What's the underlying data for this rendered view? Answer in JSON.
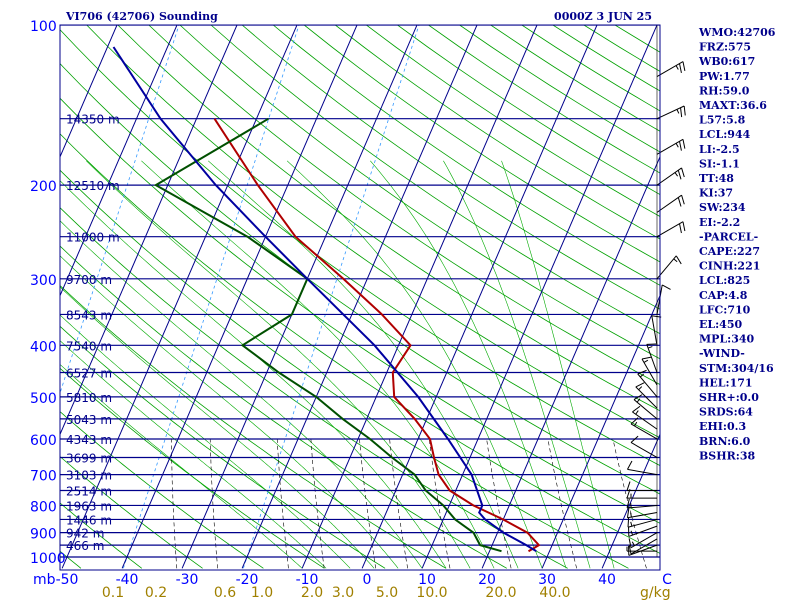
{
  "chart_data": {
    "type": "line",
    "title_left": "VI706 (42706) Sounding",
    "title_right": "0000Z  3 JUN 25",
    "pressure_ticks": [
      100,
      200,
      300,
      400,
      500,
      600,
      700,
      800,
      900,
      1000
    ],
    "pressure_axis_unit": "mb",
    "temperature_ticks": [
      "-50",
      "-40",
      "-30",
      "-20",
      "-10",
      "0",
      "10",
      "20",
      "30",
      "40",
      "C"
    ],
    "xlim_temperature": [
      -50,
      50
    ],
    "ylim_pressure": [
      1000,
      100
    ],
    "mixing_ratio_ticks": [
      {
        "label": "0.1",
        "value": 0.1
      },
      {
        "label": "0.2",
        "value": 0.2
      },
      {
        "label": "0.6",
        "value": 0.6
      },
      {
        "label": "1.0",
        "value": 1.0
      },
      {
        "label": "2.0",
        "value": 2.0
      },
      {
        "label": "3.0",
        "value": 3.0
      },
      {
        "label": "5.0",
        "value": 5.0
      },
      {
        "label": "10.0",
        "value": 10.0
      },
      {
        "label": "20.0",
        "value": 20.0
      },
      {
        "label": "40.0",
        "value": 40.0
      }
    ],
    "mixing_ratio_unit": "g/kg",
    "height_labels": [
      {
        "p": 150,
        "label": "14350 m"
      },
      {
        "p": 200,
        "label": "12510 m"
      },
      {
        "p": 250,
        "label": "11000 m"
      },
      {
        "p": 300,
        "label": "9700 m"
      },
      {
        "p": 350,
        "label": "8543 m"
      },
      {
        "p": 400,
        "label": "7540 m"
      },
      {
        "p": 450,
        "label": "6527 m"
      },
      {
        "p": 500,
        "label": "5810 m"
      },
      {
        "p": 550,
        "label": "5043 m"
      },
      {
        "p": 600,
        "label": "4343 m"
      },
      {
        "p": 650,
        "label": "3699 m"
      },
      {
        "p": 700,
        "label": "3103 m"
      },
      {
        "p": 750,
        "label": "2514 m"
      },
      {
        "p": 800,
        "label": "1963 m"
      },
      {
        "p": 850,
        "label": "1446 m"
      },
      {
        "p": 900,
        "label": "942 m"
      },
      {
        "p": 950,
        "label": "466 m"
      }
    ],
    "series": [
      {
        "key": "temperature",
        "color": "#b00000",
        "p": [
          975,
          950,
          900,
          850,
          800,
          750,
          700,
          650,
          600,
          550,
          500,
          450,
          400,
          350,
          300,
          250,
          200,
          150
        ],
        "t": [
          26.5,
          27.8,
          25,
          20,
          14,
          9,
          6,
          4,
          2,
          -2,
          -7,
          -9,
          -8,
          -15,
          -24,
          -35,
          -45,
          -57
        ]
      },
      {
        "key": "dewpoint",
        "color": "#005000",
        "p": [
          975,
          950,
          900,
          850,
          800,
          750,
          700,
          650,
          600,
          550,
          500,
          450,
          400,
          350,
          300,
          250,
          200,
          150
        ],
        "t": [
          22,
          18,
          16,
          12,
          9,
          5,
          2,
          -3,
          -8,
          -14,
          -20,
          -28,
          -36,
          -30,
          -30,
          -43,
          -62,
          -48
        ]
      },
      {
        "key": "parcel",
        "color": "#0000a0",
        "p": [
          975,
          950,
          900,
          850,
          825,
          800,
          700,
          600,
          500,
          400,
          300,
          250,
          200,
          150,
          110
        ],
        "t": [
          27.8,
          25.7,
          21,
          17,
          15.5,
          15.5,
          11.5,
          5,
          -3,
          -14,
          -30,
          -40,
          -52,
          -66,
          -79
        ]
      }
    ],
    "wind_barbs": [
      {
        "p": 975,
        "dir": 270,
        "spd": 5
      },
      {
        "p": 950,
        "dir": 250,
        "spd": 10
      },
      {
        "p": 925,
        "dir": 240,
        "spd": 10
      },
      {
        "p": 900,
        "dir": 240,
        "spd": 15
      },
      {
        "p": 875,
        "dir": 250,
        "spd": 15
      },
      {
        "p": 850,
        "dir": 255,
        "spd": 15
      },
      {
        "p": 825,
        "dir": 260,
        "spd": 15
      },
      {
        "p": 800,
        "dir": 265,
        "spd": 15
      },
      {
        "p": 775,
        "dir": 270,
        "spd": 15
      },
      {
        "p": 750,
        "dir": 270,
        "spd": 10
      },
      {
        "p": 700,
        "dir": 280,
        "spd": 10
      },
      {
        "p": 650,
        "dir": 300,
        "spd": 10
      },
      {
        "p": 600,
        "dir": 300,
        "spd": 15
      },
      {
        "p": 575,
        "dir": 305,
        "spd": 15
      },
      {
        "p": 550,
        "dir": 310,
        "spd": 15
      },
      {
        "p": 525,
        "dir": 315,
        "spd": 15
      },
      {
        "p": 500,
        "dir": 320,
        "spd": 15
      },
      {
        "p": 475,
        "dir": 330,
        "spd": 15
      },
      {
        "p": 450,
        "dir": 340,
        "spd": 15
      },
      {
        "p": 400,
        "dir": 350,
        "spd": 10
      },
      {
        "p": 350,
        "dir": 10,
        "spd": 10
      },
      {
        "p": 300,
        "dir": 40,
        "spd": 15
      },
      {
        "p": 250,
        "dir": 60,
        "spd": 20
      },
      {
        "p": 225,
        "dir": 55,
        "spd": 20
      },
      {
        "p": 200,
        "dir": 55,
        "spd": 25
      },
      {
        "p": 175,
        "dir": 60,
        "spd": 25
      },
      {
        "p": 150,
        "dir": 65,
        "spd": 25
      },
      {
        "p": 125,
        "dir": 60,
        "spd": 25
      }
    ]
  },
  "indices": [
    "WMO:42706",
    "FRZ:575",
    "WB0:617",
    "PW:1.77",
    "RH:59.0",
    "MAXT:36.6",
    "L57:5.8",
    "LCL:944",
    "LI:-2.5",
    "SI:-1.1",
    "TT:48",
    "KI:37",
    "SW:234",
    "EI:-2.2",
    "-PARCEL-",
    "CAPE:227",
    "CINH:221",
    "LCL:825",
    "CAP:4.8",
    "LFC:710",
    "EL:450",
    "MPL:340",
    "-WIND-",
    "STM:304/16",
    "HEL:171",
    "SHR+:0.0",
    "SRDS:64",
    "EHI:0.3",
    "BRN:6.0",
    "BSHR:38"
  ],
  "colors": {
    "isobar": "#00008b",
    "isotherm": "#00008b",
    "dry_adiabat": "#00a000",
    "moist_adiabat": "#00aa00",
    "mixing_ratio": "#000000",
    "ice_curve": "#3399ff",
    "label_blue": "#0000ff",
    "mix_label": "#a08000"
  }
}
